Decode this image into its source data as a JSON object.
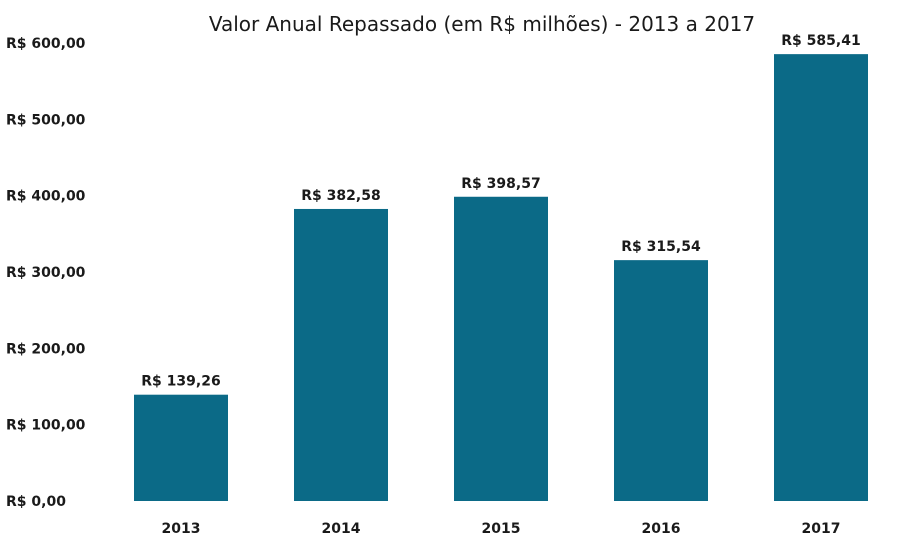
{
  "chart_data": {
    "type": "bar",
    "title": "Valor Anual Repassado (em R$ milhões) - 2013 a 2017",
    "xlabel": "",
    "ylabel": "",
    "categories": [
      "2013",
      "2014",
      "2015",
      "2016",
      "2017"
    ],
    "values": [
      139.26,
      382.58,
      398.57,
      315.54,
      585.41
    ],
    "data_labels": [
      "R$ 139,26",
      "R$ 382,58",
      "R$ 398,57",
      "R$ 315,54",
      "R$ 585,41"
    ],
    "ylim": [
      0,
      600
    ],
    "yticks": [
      0,
      100,
      200,
      300,
      400,
      500,
      600
    ],
    "ytick_labels": [
      "R$ 0,00",
      "R$ 100,00",
      "R$ 200,00",
      "R$ 300,00",
      "R$ 400,00",
      "R$ 500,00",
      "R$ 600,00"
    ],
    "grid": false,
    "legend": "none",
    "bar_color": "#0b6a87"
  }
}
